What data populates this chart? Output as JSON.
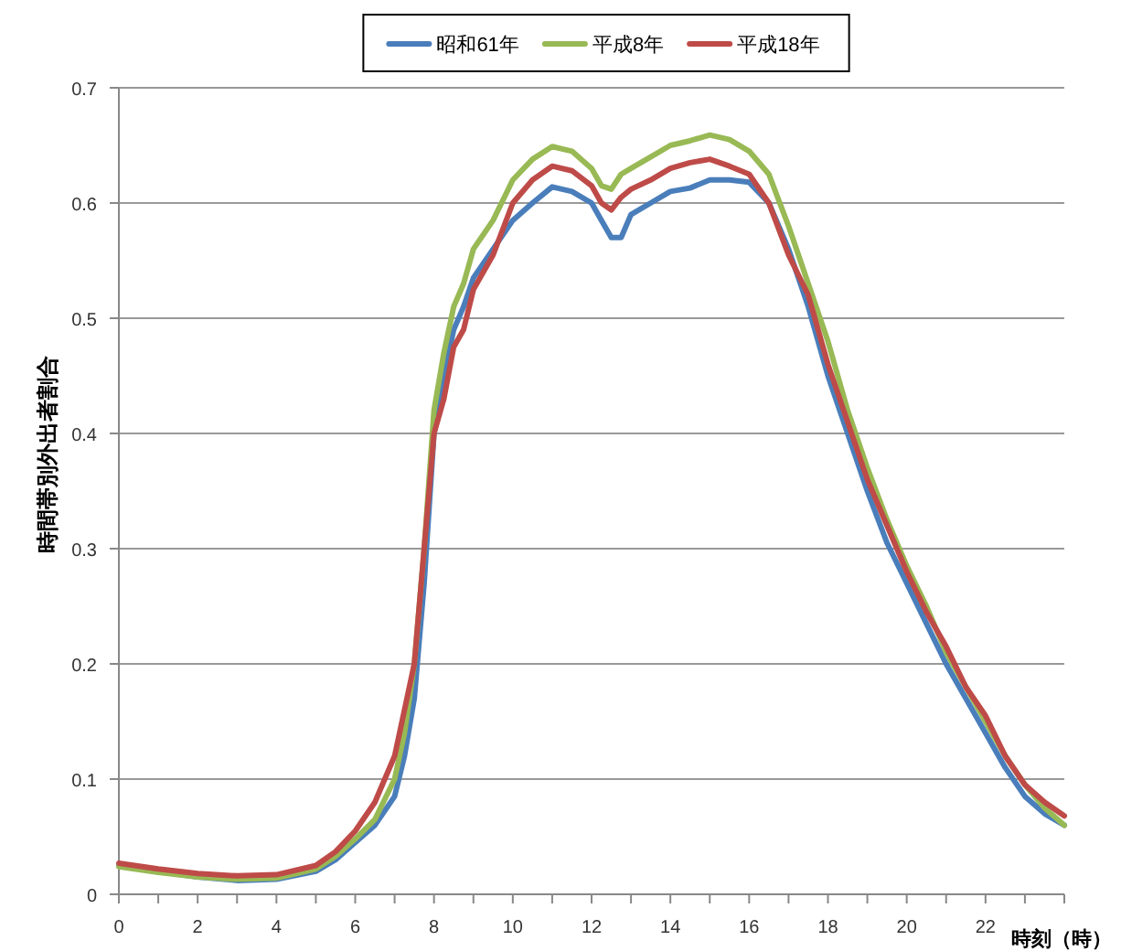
{
  "chart_data": {
    "type": "line",
    "xlabel": "時刻（時）",
    "ylabel": "時間帯別外出者割合",
    "xlim": [
      0,
      24
    ],
    "ylim": [
      0,
      0.7
    ],
    "xticks": [
      0,
      {
        "value": 1,
        "label": null
      },
      2,
      {
        "value": 3,
        "label": null
      },
      4,
      {
        "value": 5,
        "label": null
      },
      6,
      {
        "value": 7,
        "label": null
      },
      8,
      {
        "value": 9,
        "label": null
      },
      10,
      {
        "value": 11,
        "label": null
      },
      12,
      {
        "value": 13,
        "label": null
      },
      14,
      {
        "value": 15,
        "label": null
      },
      16,
      {
        "value": 17,
        "label": null
      },
      18,
      {
        "value": 19,
        "label": null
      },
      20,
      {
        "value": 21,
        "label": null
      },
      22,
      {
        "value": 23,
        "label": null
      },
      {
        "value": 24,
        "label": null
      }
    ],
    "yticks": [
      0,
      0.1,
      0.2,
      0.3,
      0.4,
      0.5,
      0.6,
      0.7
    ],
    "grid": "y",
    "legend": "top",
    "marker": "none",
    "line_style": "solid",
    "x": [
      0,
      1,
      2,
      3,
      4,
      5,
      5.5,
      6,
      6.5,
      7,
      7.25,
      7.5,
      7.75,
      8,
      8.25,
      8.5,
      8.75,
      9,
      9.5,
      10,
      10.5,
      11,
      11.5,
      12,
      12.25,
      12.5,
      12.75,
      13,
      13.5,
      14,
      14.5,
      15,
      15.5,
      16,
      16.5,
      17,
      17.5,
      18,
      18.5,
      19,
      19.5,
      20,
      20.5,
      21,
      21.5,
      22,
      22.5,
      23,
      23.5,
      24
    ],
    "series": [
      {
        "name": "昭和61年",
        "color": "#4a7ebb",
        "values": [
          0.025,
          0.02,
          0.015,
          0.012,
          0.013,
          0.02,
          0.03,
          0.045,
          0.06,
          0.085,
          0.12,
          0.17,
          0.27,
          0.4,
          0.45,
          0.49,
          0.51,
          0.535,
          0.56,
          0.585,
          0.6,
          0.614,
          0.61,
          0.6,
          0.585,
          0.57,
          0.57,
          0.59,
          0.6,
          0.61,
          0.613,
          0.62,
          0.62,
          0.618,
          0.6,
          0.56,
          0.51,
          0.45,
          0.4,
          0.35,
          0.305,
          0.27,
          0.235,
          0.2,
          0.17,
          0.14,
          0.11,
          0.085,
          0.07,
          0.06
        ]
      },
      {
        "name": "平成8年",
        "color": "#98b954",
        "values": [
          0.024,
          0.019,
          0.015,
          0.013,
          0.014,
          0.022,
          0.033,
          0.048,
          0.065,
          0.1,
          0.14,
          0.2,
          0.3,
          0.42,
          0.47,
          0.51,
          0.53,
          0.56,
          0.585,
          0.62,
          0.638,
          0.649,
          0.645,
          0.63,
          0.615,
          0.612,
          0.625,
          0.63,
          0.64,
          0.65,
          0.654,
          0.659,
          0.655,
          0.645,
          0.625,
          0.58,
          0.53,
          0.48,
          0.42,
          0.37,
          0.325,
          0.285,
          0.25,
          0.21,
          0.18,
          0.15,
          0.12,
          0.095,
          0.075,
          0.06
        ]
      },
      {
        "name": "平成18年",
        "color": "#be4b48",
        "values": [
          0.027,
          0.022,
          0.018,
          0.016,
          0.017,
          0.025,
          0.037,
          0.055,
          0.08,
          0.12,
          0.16,
          0.2,
          0.3,
          0.4,
          0.43,
          0.475,
          0.49,
          0.525,
          0.555,
          0.6,
          0.62,
          0.632,
          0.628,
          0.615,
          0.6,
          0.594,
          0.605,
          0.612,
          0.62,
          0.63,
          0.635,
          0.638,
          0.632,
          0.625,
          0.6,
          0.555,
          0.52,
          0.46,
          0.41,
          0.36,
          0.32,
          0.28,
          0.245,
          0.215,
          0.18,
          0.155,
          0.12,
          0.095,
          0.08,
          0.068
        ]
      }
    ]
  }
}
